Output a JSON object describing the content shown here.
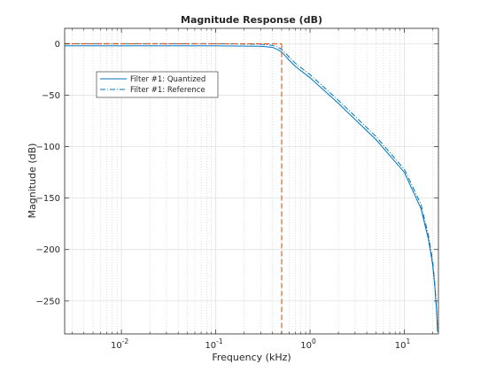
{
  "chart_data": {
    "type": "line",
    "title": "Magnitude Response (dB)",
    "xlabel": "Frequency (kHz)",
    "ylabel": "Magnitude (dB)",
    "x_scale": "log",
    "xlim": [
      0.0025,
      23
    ],
    "ylim": [
      -282,
      15
    ],
    "x_ticks": [
      {
        "value": 0.01,
        "label": "10",
        "exp": "-2"
      },
      {
        "value": 0.1,
        "label": "10",
        "exp": "-1"
      },
      {
        "value": 1,
        "label": "10",
        "exp": "0"
      },
      {
        "value": 10,
        "label": "10",
        "exp": "1"
      }
    ],
    "y_ticks": [
      0,
      -50,
      -100,
      -150,
      -200,
      -250
    ],
    "grid": true,
    "minor_grid": true,
    "legend_position": "upper-left",
    "series": [
      {
        "name": "Filter #1: Quantized",
        "color": "#0072bd",
        "style": "solid",
        "x": [
          0.0025,
          0.1,
          0.3,
          0.4,
          0.45,
          0.5,
          0.55,
          0.6,
          0.7,
          1,
          2,
          5,
          10,
          15,
          18,
          20,
          21,
          22,
          22.5
        ],
        "y": [
          -2,
          -2,
          -2.5,
          -3.5,
          -5.5,
          -8,
          -12,
          -16,
          -22,
          -33,
          -58,
          -93,
          -125,
          -160,
          -190,
          -215,
          -235,
          -260,
          -280
        ]
      },
      {
        "name": "Filter #1: Reference",
        "color": "#0072bd",
        "style": "dashdot",
        "x": [
          0.0025,
          0.1,
          0.3,
          0.4,
          0.45,
          0.5,
          0.55,
          0.6,
          0.7,
          1,
          2,
          5,
          10,
          15,
          18,
          20,
          21,
          22,
          22.5
        ],
        "y": [
          0,
          0,
          -0.5,
          -1.5,
          -3,
          -5.5,
          -9,
          -13,
          -19,
          -30,
          -55,
          -90,
          -122,
          -156,
          -186,
          -211,
          -232,
          -257,
          -278
        ]
      }
    ],
    "annotations": [
      {
        "type": "vline",
        "x": 0.5,
        "color": "#d95319",
        "style": "dashed"
      },
      {
        "type": "hline",
        "y": 0,
        "x_end": 0.5,
        "color": "#d95319",
        "style": "dashed"
      }
    ]
  }
}
